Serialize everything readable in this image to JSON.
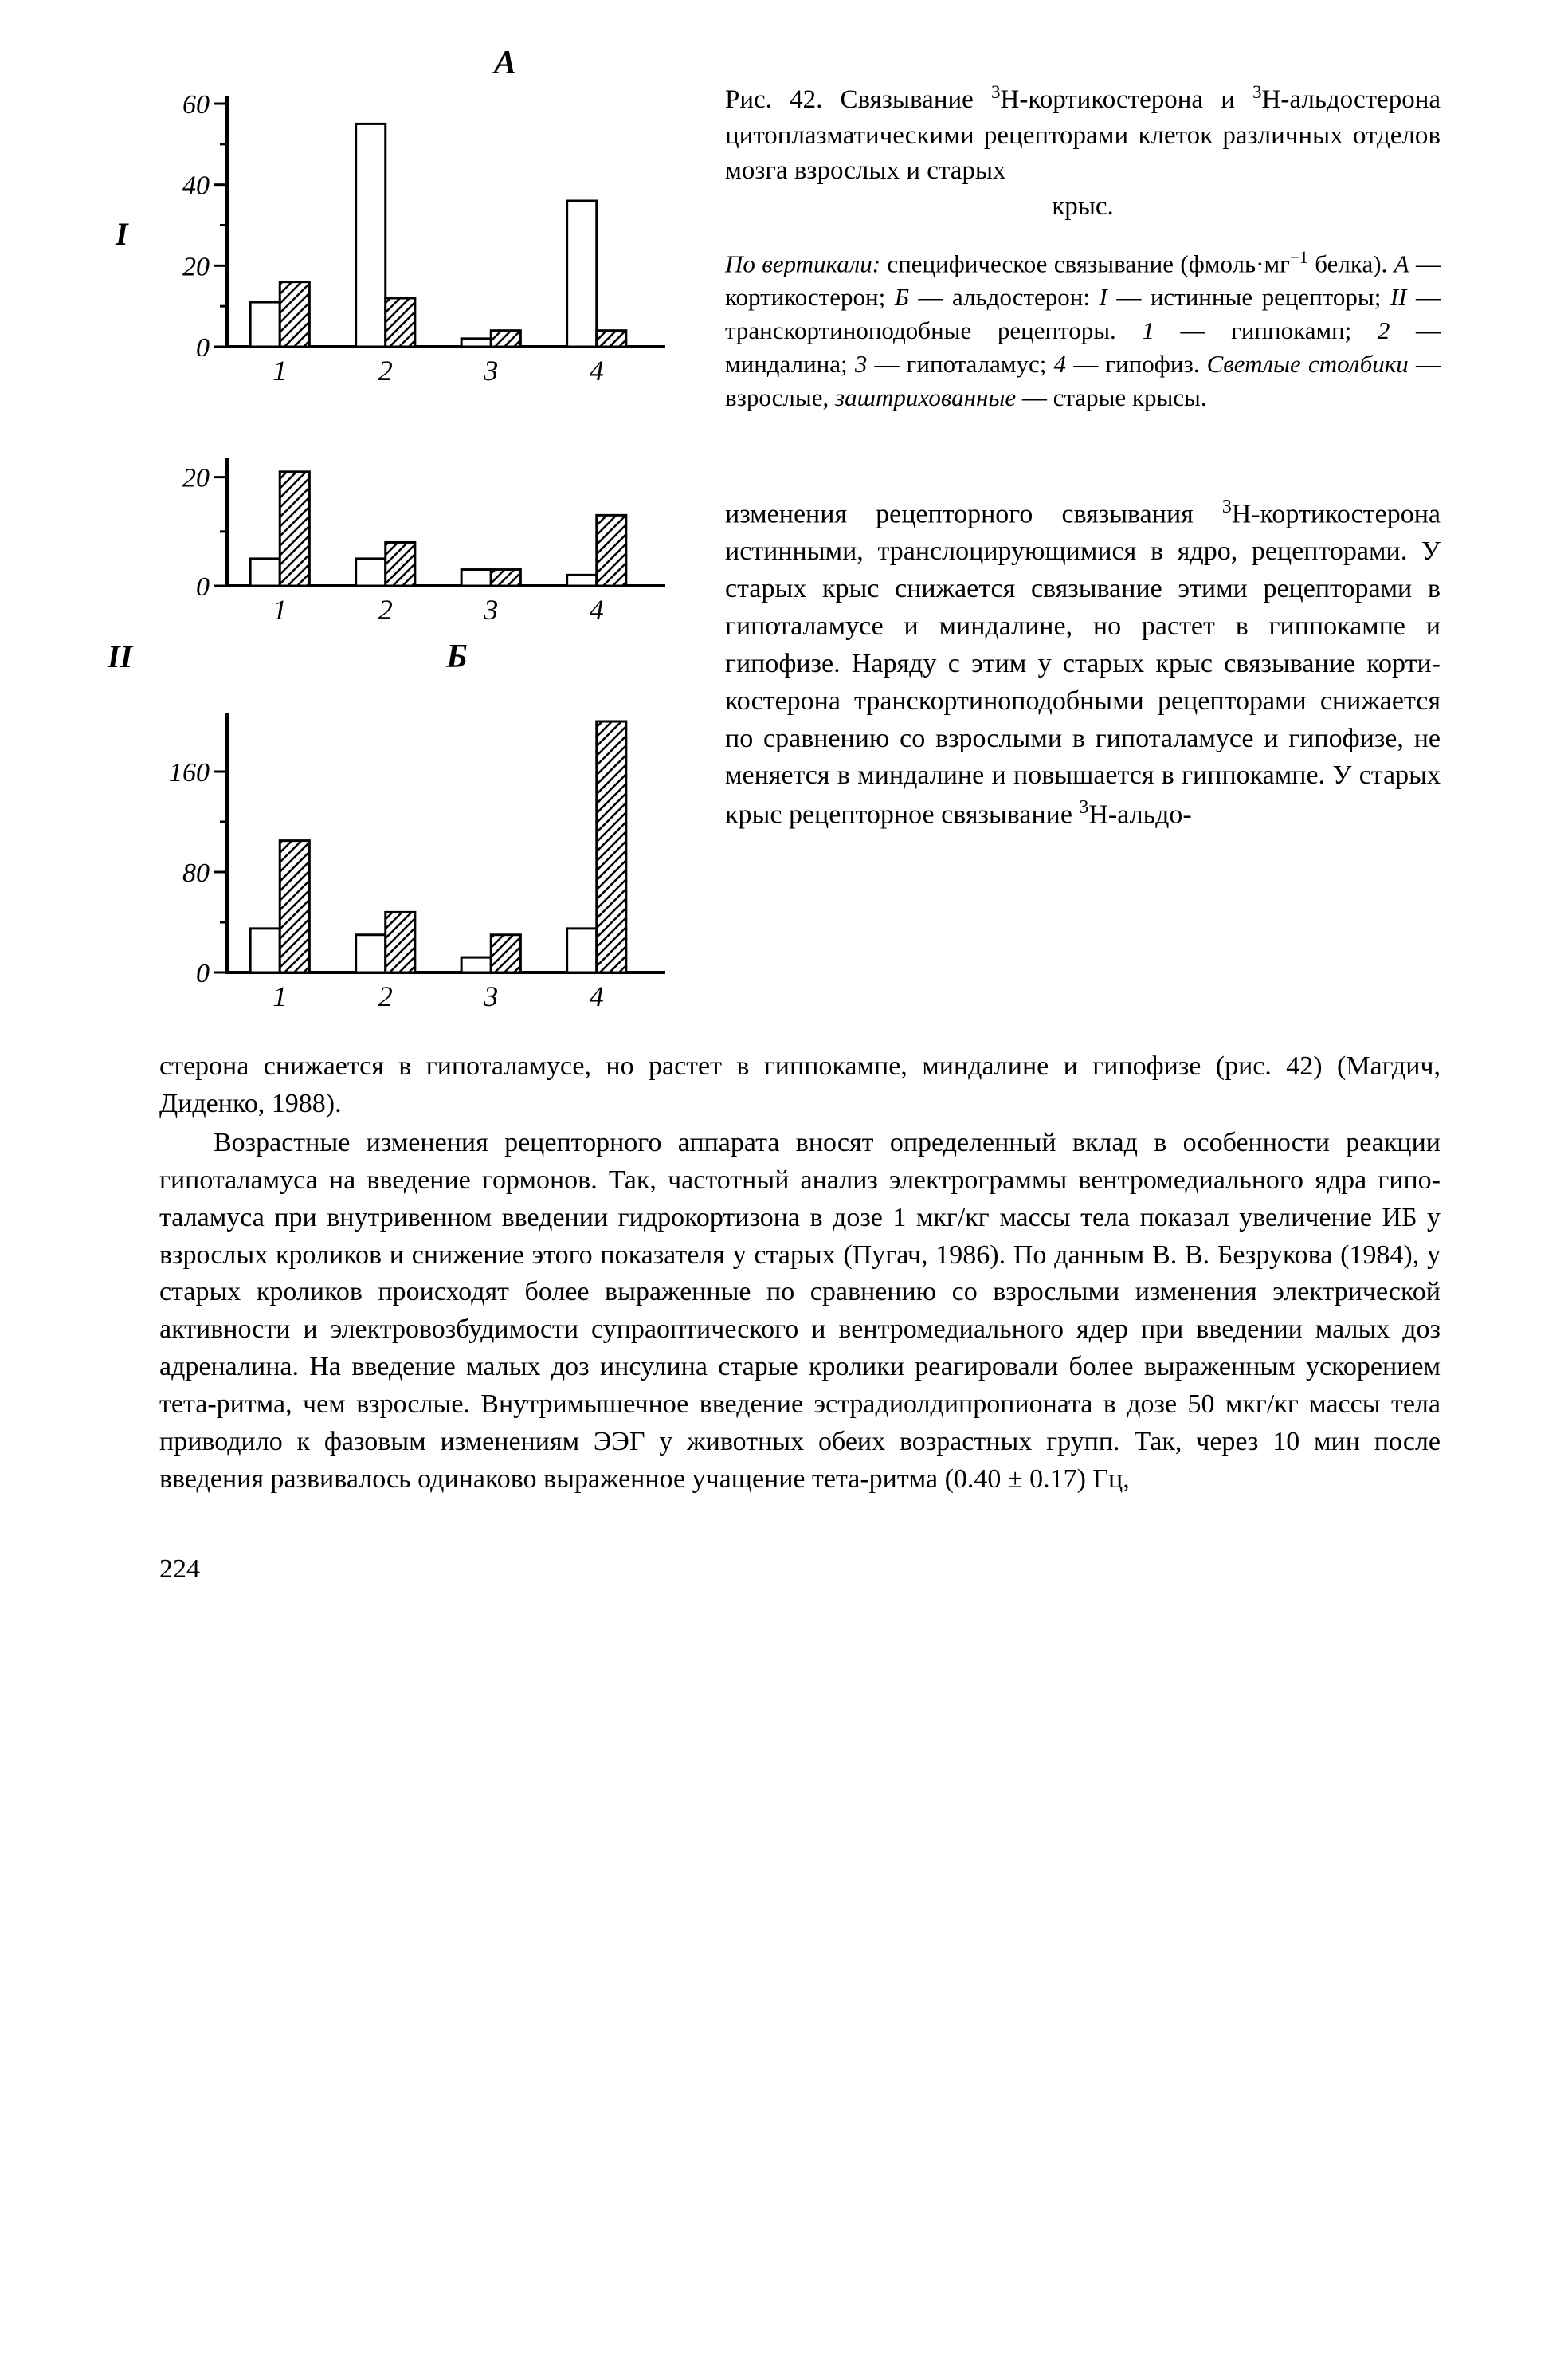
{
  "page_number": "224",
  "caption": {
    "title_prefix": "Рис. 42. Связывание ",
    "title_sup1": "3",
    "title_mid1": "H-кортикостеро­на и ",
    "title_sup2": "3",
    "title_mid2": "H-альдостерона цитоплазмати­ческими рецепторами клеток различ­ных отделов мозга взрослых и старых",
    "title_center": "крыс.",
    "desc_prefix": "По вертикали:",
    "desc_body1": " специфическое связы­вание (фмоль·мг",
    "desc_sup": "−1",
    "desc_body2": " белка). ",
    "desc_A": "A",
    "desc_body3": " — корти­костерон; ",
    "desc_B": "Б",
    "desc_body4": " — альдостерон: ",
    "desc_I": "I",
    "desc_body5": " — истин­ные рецепторы; ",
    "desc_II": "II",
    "desc_body6": " — транскортинопо­добные рецепторы. ",
    "desc_1": "1",
    "desc_body7": " — гиппокамп; ",
    "desc_2": "2",
    "desc_body8": " — миндалина; ",
    "desc_3": "3",
    "desc_body9": " — гипоталамус; ",
    "desc_4": "4",
    "desc_body10": " — гипофиз. ",
    "desc_light": "Светлые столбики",
    "desc_body11": " — взрос­лые, ",
    "desc_hatched": "заштрихованные",
    "desc_body12": " — старые крысы."
  },
  "labels": {
    "I": "I",
    "II": "II",
    "A": "А",
    "B": "Б"
  },
  "chartA": {
    "type": "bar",
    "ymax": 60,
    "yticks": [
      0,
      20,
      40,
      60
    ],
    "categories": [
      "1",
      "2",
      "3",
      "4"
    ],
    "open": [
      11,
      55,
      2,
      36
    ],
    "hatched": [
      16,
      12,
      4,
      4
    ],
    "colors": {
      "open": "#ffffff",
      "hatched_stroke": "#000000",
      "axis": "#000000",
      "bg": "#ffffff"
    },
    "bar_stroke_width": 3,
    "axis_stroke_width": 4
  },
  "chartB_top": {
    "type": "bar",
    "ymax": 22,
    "yticks": [
      0,
      20
    ],
    "categories": [
      "1",
      "2",
      "3",
      "4"
    ],
    "open": [
      5,
      5,
      3,
      2
    ],
    "hatched": [
      21,
      8,
      3,
      13
    ],
    "colors": {
      "open": "#ffffff",
      "hatched_stroke": "#000000",
      "axis": "#000000",
      "bg": "#ffffff"
    }
  },
  "chartB_bottom": {
    "type": "bar",
    "ymax": 200,
    "yticks": [
      0,
      80,
      160
    ],
    "categories": [
      "1",
      "2",
      "3",
      "4"
    ],
    "open": [
      35,
      30,
      12,
      35
    ],
    "hatched": [
      105,
      48,
      30,
      200
    ],
    "colors": {
      "open": "#ffffff",
      "hatched_stroke": "#000000",
      "axis": "#000000",
      "bg": "#ffffff"
    }
  },
  "body_wrap": {
    "p1_prefix": "изменения рецепторного связы­вания ",
    "p1_sup": "3",
    "p1_body": "H-кортикостерона истин­ными, транслоцирующимися в ядро, рецепторами. У старых крыс снижается связывание эти­ми рецепторами в гипоталамусе и миндалине, но растет в гиппо­кампе и гипофизе. Наряду с этим у старых крыс связывание корти­костерона транскортиноподобны­ми рецепторами снижается по сравнению со взрослыми в гипо­таламусе и гипофизе, не меняет­ся в миндалине и повышается в гиппокампе. У старых крыс ре­цепторное связывание ",
    "p1_sup2": "3",
    "p1_end": "H-альдо-"
  },
  "body_full": {
    "p1_cont": "стерона снижается в гипоталамусе, но растет в гиппокампе, миндали­не и гипофизе (рис. 42) (Магдич, Диденко, 1988).",
    "p2": "Возрастные изменения рецепторного аппарата вносят определен­ный вклад в особенности реакции гипоталамуса на введение гормонов. Так, частотный анализ электрограммы вентромедиального ядра гипо­таламуса при внутривенном введении гидрокортизона в дозе 1 мкг/кг массы тела показал увеличение ИБ у взрослых кроликов и снижение этого показателя у старых (Пугач, 1986). По данным В. В. Безрукова (1984), у старых кроликов происходят более выраженные по сравне­нию со взрослыми изменения электрической активности и электровоз­будимости супраоптического и вентромедиального ядер при введении малых доз адреналина. На введение малых доз инсулина старые кро­лики реагировали более выраженным ускорением тета-ритма, чем взрослые. Внутримышечное введение эстрадиолдипропионата в дозе 50 мкг/кг массы тела приводило к фазовым изменениям ЭЭГ у живот­ных обеих возрастных групп. Так, через 10 мин после введения разви­валось одинаково выраженное учащение тета-ритма (0.40 ± 0.17) Гц,"
  }
}
